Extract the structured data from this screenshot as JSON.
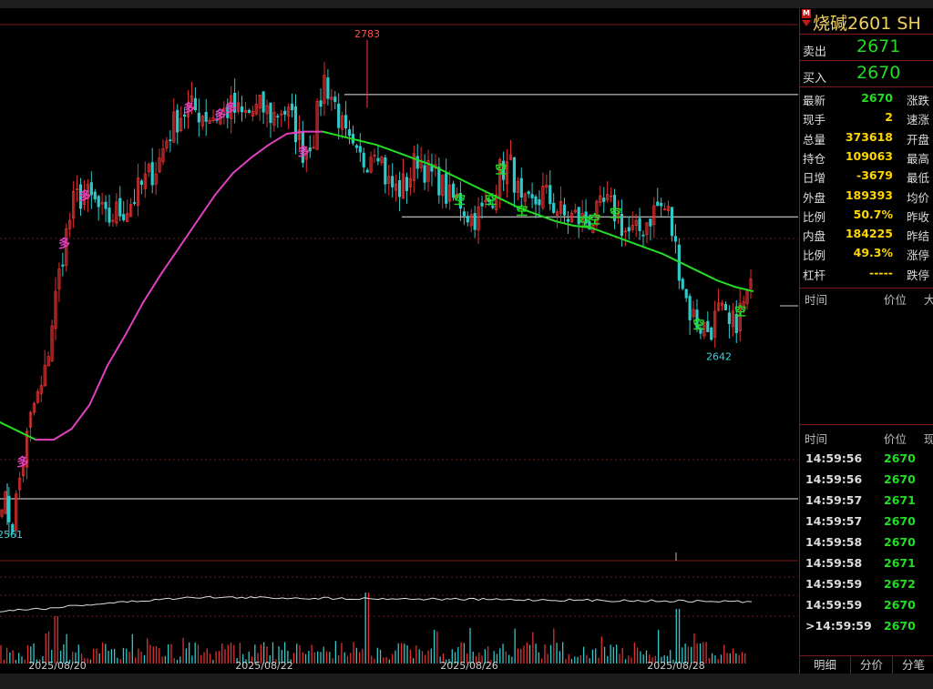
{
  "panel": {
    "marker": "M",
    "title": "烧碱2601  SH",
    "ask_label": "卖出",
    "ask_value": "2671",
    "bid_label": "买入",
    "bid_value": "2670",
    "quote_rows": [
      {
        "label": "最新",
        "value": "2670",
        "label2": "涨跌",
        "color": "#22dd22"
      },
      {
        "label": "现手",
        "value": "2",
        "label2": "速涨",
        "color": "#ffd700"
      },
      {
        "label": "总量",
        "value": "373618",
        "label2": "开盘",
        "color": "#ffd700"
      },
      {
        "label": "持仓",
        "value": "109063",
        "label2": "最高",
        "color": "#ffd700"
      },
      {
        "label": "日增",
        "value": "-3679",
        "label2": "最低",
        "color": "#ffd700"
      },
      {
        "label": "外盘",
        "value": "189393",
        "label2": "均价",
        "color": "#ffd700"
      },
      {
        "label": "比例",
        "value": "50.7%",
        "label2": "昨收",
        "color": "#ffd700"
      },
      {
        "label": "内盘",
        "value": "184225",
        "label2": "昨结",
        "color": "#ffd700"
      },
      {
        "label": "比例",
        "value": "49.3%",
        "label2": "涨停",
        "color": "#ffd700"
      },
      {
        "label": "杠杆",
        "value": "-----",
        "label2": "跌停",
        "color": "#ffd700"
      }
    ],
    "cols1": {
      "time": "时间",
      "price": "价位",
      "size": "大"
    },
    "cols2": {
      "time": "时间",
      "price": "价位",
      "size": "现"
    },
    "ticks": [
      {
        "time": "14:59:56",
        "price": "2670",
        "color": "#22dd22"
      },
      {
        "time": "14:59:56",
        "price": "2670",
        "color": "#22dd22"
      },
      {
        "time": "14:59:57",
        "price": "2671",
        "color": "#22dd22"
      },
      {
        "time": "14:59:57",
        "price": "2670",
        "color": "#22dd22"
      },
      {
        "time": "14:59:58",
        "price": "2670",
        "color": "#22dd22"
      },
      {
        "time": "14:59:58",
        "price": "2671",
        "color": "#22dd22"
      },
      {
        "time": "14:59:59",
        "price": "2672",
        "color": "#22dd22"
      },
      {
        "time": "14:59:59",
        "price": "2670",
        "color": "#22dd22"
      },
      {
        "time": ">14:59:59",
        "price": "2670",
        "color": "#22dd22"
      }
    ],
    "tabs": [
      "明细",
      "分价",
      "分笔"
    ]
  },
  "chart_data": {
    "type": "candlestick",
    "x_tick_labels": [
      "2025/08/20",
      "2025/08/22",
      "2025/08/26",
      "2025/08/28"
    ],
    "ylim": [
      2548,
      2790
    ],
    "high_label": "2783",
    "low_label": "2561",
    "recent_low_label": "2642",
    "horizontal_levels": [
      2758,
      2702,
      2573
    ],
    "price_series": [
      2575,
      2561,
      2590,
      2615,
      2625,
      2660,
      2690,
      2710,
      2712,
      2708,
      2700,
      2704,
      2706,
      2713,
      2720,
      2726,
      2740,
      2748,
      2752,
      2750,
      2748,
      2749,
      2752,
      2748,
      2750,
      2752,
      2748,
      2752,
      2745,
      2732,
      2740,
      2765,
      2754,
      2738,
      2728,
      2728,
      2738,
      2718,
      2714,
      2718,
      2730,
      2722,
      2719,
      2710,
      2710,
      2702,
      2703,
      2710,
      2724,
      2725,
      2705,
      2707,
      2713,
      2708,
      2702,
      2702,
      2700,
      2701,
      2708,
      2704,
      2695,
      2694,
      2700,
      2707,
      2705,
      2682,
      2660,
      2653,
      2650,
      2659,
      2650,
      2659,
      2668
    ],
    "ma_series": [
      2608,
      2604,
      2600,
      2600,
      2605,
      2616,
      2634,
      2648,
      2663,
      2676,
      2688,
      2700,
      2712,
      2722,
      2729,
      2735,
      2740,
      2741,
      2741,
      2739,
      2737,
      2735,
      2732,
      2729,
      2726,
      2722,
      2718,
      2714,
      2710,
      2706,
      2703,
      2700,
      2698,
      2697,
      2694,
      2691,
      2688,
      2685,
      2681,
      2677,
      2673,
      2670,
      2668
    ],
    "signals": [
      {
        "label": "多",
        "color": "#e040c0",
        "i": 2
      },
      {
        "label": "多",
        "color": "#e040c0",
        "i": 6
      },
      {
        "label": "多",
        "color": "#e040c0",
        "i": 8
      },
      {
        "label": "多",
        "color": "#e040c0",
        "i": 18
      },
      {
        "label": "多",
        "color": "#e040c0",
        "i": 21
      },
      {
        "label": "多",
        "color": "#e040c0",
        "i": 22
      },
      {
        "label": "多",
        "color": "#e040c0",
        "i": 29
      },
      {
        "label": "空",
        "color": "#22dd22",
        "i": 44
      },
      {
        "label": "空",
        "color": "#22dd22",
        "i": 47
      },
      {
        "label": "空",
        "color": "#22dd22",
        "i": 48
      },
      {
        "label": "空",
        "color": "#22dd22",
        "i": 50
      },
      {
        "label": "空",
        "color": "#22dd22",
        "i": 56
      },
      {
        "label": "空",
        "color": "#22dd22",
        "i": 57
      },
      {
        "label": "空",
        "color": "#22dd22",
        "i": 59
      },
      {
        "label": "空",
        "color": "#22dd22",
        "i": 67
      },
      {
        "label": "空",
        "color": "#22dd22",
        "i": 71
      }
    ],
    "colors": {
      "up": "#e03030",
      "down": "#30c8c8",
      "ma_rise": "#e040c0",
      "ma_fall": "#22dd22",
      "text_high": "#ff5050",
      "text_low": "#40d0e0",
      "grid": "#6a1a1a"
    }
  }
}
